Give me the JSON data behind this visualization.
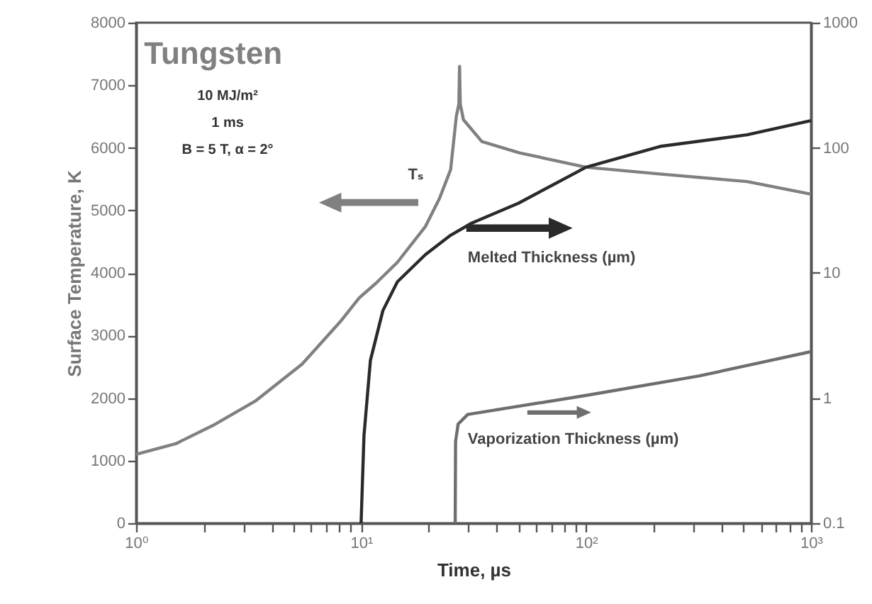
{
  "chart_data": {
    "type": "line",
    "xlabel": "Time, µs",
    "y2label": "Surface Temperature, K",
    "log": "xy",
    "xlim": [
      1,
      1000
    ],
    "xticks": [
      {
        "value": 1,
        "label": "10⁰"
      },
      {
        "value": 2,
        "label": null
      },
      {
        "value": 3,
        "label": null
      },
      {
        "value": 4,
        "label": null
      },
      {
        "value": 5,
        "label": null
      },
      {
        "value": 6,
        "label": null
      },
      {
        "value": 7,
        "label": null
      },
      {
        "value": 8,
        "label": null
      },
      {
        "value": 9,
        "label": null
      },
      {
        "value": 10,
        "label": "10¹"
      },
      {
        "value": 20,
        "label": null
      },
      {
        "value": 30,
        "label": null
      },
      {
        "value": 40,
        "label": null
      },
      {
        "value": 50,
        "label": null
      },
      {
        "value": 60,
        "label": null
      },
      {
        "value": 70,
        "label": null
      },
      {
        "value": 80,
        "label": null
      },
      {
        "value": 90,
        "label": null
      },
      {
        "value": 100,
        "label": "10²"
      },
      {
        "value": 200,
        "label": null
      },
      {
        "value": 300,
        "label": null
      },
      {
        "value": 400,
        "label": null
      },
      {
        "value": 500,
        "label": null
      },
      {
        "value": 600,
        "label": null
      },
      {
        "value": 700,
        "label": null
      },
      {
        "value": 800,
        "label": null
      },
      {
        "value": 900,
        "label": null
      },
      {
        "value": 1000,
        "label": "10³"
      }
    ],
    "y2lim": [
      0,
      8000
    ],
    "y2ticks": [
      0,
      1000,
      2000,
      3000,
      4000,
      5000,
      6000,
      7000,
      8000
    ],
    "ylim": [
      0.1,
      1000
    ],
    "yticks": [
      0.1,
      1,
      10,
      100,
      1000
    ],
    "grid": false,
    "marker": "none",
    "line_style": "solid",
    "annotations": [
      "Tungsten",
      "10 MJ/m²",
      "1 ms",
      "B = 5 T, α = 2°"
    ],
    "series": [
      {
        "name": "Tₛ",
        "color": "#808080",
        "axis": "y2",
        "x": [
          1,
          1.5,
          2.19,
          3.38,
          5.46,
          8.08,
          9.8,
          11.6,
          14.5,
          19.3,
          22.3,
          25,
          26.5,
          27.2,
          27.4,
          27.6,
          28.5,
          34.4,
          50.6,
          100,
          216,
          520,
          1000
        ],
        "values": [
          1100,
          1270,
          1560,
          1950,
          2540,
          3220,
          3600,
          3830,
          4170,
          4740,
          5190,
          5650,
          6500,
          6700,
          7300,
          6700,
          6450,
          6100,
          5920,
          5690,
          5580,
          5460,
          5260
        ]
      },
      {
        "name": "Melted Thickness (µm)",
        "color": "#2a2a2a",
        "x": [
          10,
          10.3,
          11,
          12.5,
          14.5,
          19.3,
          25,
          31,
          50,
          100,
          216,
          520,
          1000
        ],
        "values": [
          0.1,
          0.5,
          2,
          5,
          8.5,
          14,
          20,
          25,
          36,
          70,
          103,
          127,
          165
        ]
      },
      {
        "name": "Vaporization Thickness (µm)",
        "color": "#6e6e6e",
        "x": [
          26.2,
          26.3,
          27,
          29.8,
          100,
          317,
          1000
        ],
        "values": [
          0.1,
          0.45,
          0.62,
          0.74,
          1.05,
          1.5,
          2.35
        ]
      }
    ]
  }
}
